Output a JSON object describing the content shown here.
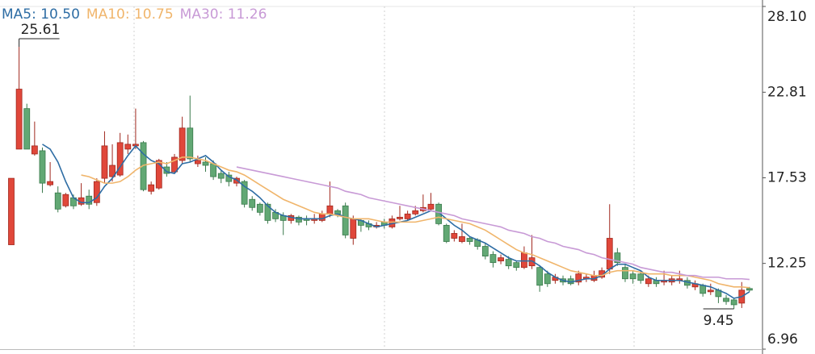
{
  "chart_data": {
    "type": "candlestick",
    "up_color": "#e0473a",
    "down_color": "#62a874",
    "open": [
      13.4,
      19.3,
      21.8,
      19.0,
      19.2,
      17.1,
      16.6,
      15.8,
      16.3,
      15.9,
      16.4,
      16.0,
      17.5,
      17.6,
      17.7,
      19.3,
      19.5,
      19.7,
      16.7,
      16.9,
      18.2,
      17.9,
      18.6,
      20.6,
      18.4,
      18.5,
      18.4,
      17.8,
      17.7,
      17.2,
      17.3,
      16.2,
      15.9,
      15.9,
      15.4,
      15.2,
      14.9,
      15.1,
      15.0,
      14.9,
      14.9,
      15.3,
      15.5,
      15.8,
      13.8,
      14.9,
      14.7,
      14.5,
      14.8,
      14.5,
      15.0,
      15.0,
      15.3,
      15.5,
      15.6,
      15.9,
      14.6,
      13.8,
      13.6,
      13.8,
      13.7,
      13.3,
      12.8,
      12.4,
      12.5,
      12.3,
      12.0,
      12.1,
      12.0,
      11.6,
      11.2,
      11.3,
      11.3,
      11.1,
      11.3,
      11.2,
      11.4,
      11.9,
      12.9,
      12.0,
      11.6,
      11.6,
      11.0,
      11.2,
      11.1,
      11.1,
      11.2,
      11.2,
      10.8,
      10.9,
      10.5,
      10.6,
      10.1,
      10.0,
      9.8,
      10.7
    ],
    "high": [
      17.5,
      25.61,
      22.1,
      21.0,
      19.4,
      18.5,
      17.0,
      16.6,
      16.5,
      17.2,
      16.8,
      17.5,
      20.4,
      19.6,
      20.3,
      20.2,
      21.8,
      19.8,
      17.3,
      18.7,
      18.5,
      19.0,
      21.3,
      22.6,
      18.9,
      18.8,
      18.6,
      18.0,
      17.9,
      17.6,
      17.4,
      16.4,
      16.0,
      16.0,
      15.6,
      15.4,
      15.3,
      15.2,
      15.2,
      15.3,
      15.5,
      17.3,
      15.6,
      16.0,
      15.2,
      15.0,
      14.9,
      14.8,
      15.0,
      15.2,
      15.8,
      15.5,
      15.8,
      16.5,
      16.6,
      16.0,
      14.7,
      14.3,
      14.7,
      13.9,
      13.8,
      13.5,
      13.0,
      12.8,
      12.7,
      12.4,
      13.3,
      14.0,
      12.1,
      11.8,
      11.6,
      11.5,
      11.5,
      11.8,
      11.6,
      11.8,
      12.0,
      15.9,
      13.2,
      12.2,
      11.8,
      11.8,
      11.5,
      11.4,
      11.8,
      11.5,
      11.8,
      11.4,
      11.2,
      11.0,
      11.0,
      10.7,
      10.3,
      10.1,
      11.1,
      10.8
    ],
    "low": [
      13.4,
      19.3,
      19.3,
      18.9,
      16.6,
      17.0,
      15.4,
      15.7,
      15.6,
      15.8,
      15.6,
      15.8,
      17.2,
      17.3,
      17.6,
      19.0,
      19.3,
      16.7,
      16.5,
      16.8,
      17.6,
      17.8,
      18.4,
      18.5,
      18.2,
      17.9,
      17.4,
      17.2,
      17.0,
      17.0,
      15.7,
      15.5,
      15.2,
      14.7,
      14.8,
      14.0,
      14.7,
      14.6,
      14.6,
      14.7,
      14.8,
      15.1,
      15.1,
      13.8,
      13.4,
      14.2,
      14.3,
      14.4,
      14.4,
      14.4,
      14.9,
      14.9,
      15.2,
      15.4,
      15.5,
      14.6,
      13.5,
      13.6,
      13.5,
      13.4,
      13.1,
      12.5,
      12.0,
      12.2,
      11.9,
      11.8,
      11.9,
      11.9,
      10.5,
      10.8,
      11.0,
      10.9,
      10.9,
      10.9,
      11.1,
      11.1,
      11.3,
      11.6,
      12.1,
      11.1,
      11.0,
      11.0,
      10.8,
      10.8,
      10.9,
      10.9,
      11.0,
      10.7,
      10.6,
      10.2,
      10.3,
      9.8,
      9.7,
      9.45,
      9.5,
      10.5
    ],
    "close": [
      17.5,
      23.0,
      19.3,
      19.5,
      17.2,
      17.3,
      15.6,
      16.5,
      15.8,
      16.3,
      15.9,
      17.3,
      19.5,
      18.3,
      19.7,
      19.6,
      19.6,
      16.8,
      17.1,
      18.6,
      17.8,
      18.8,
      20.6,
      18.7,
      18.6,
      18.3,
      17.6,
      17.5,
      17.3,
      17.5,
      15.9,
      15.7,
      15.4,
      14.9,
      15.0,
      14.9,
      15.2,
      14.8,
      14.9,
      15.0,
      15.3,
      15.8,
      15.3,
      14.0,
      15.0,
      14.6,
      14.5,
      14.6,
      14.6,
      15.0,
      15.1,
      15.3,
      15.5,
      15.7,
      15.9,
      14.7,
      13.6,
      14.1,
      13.9,
      13.6,
      13.3,
      12.7,
      12.3,
      12.6,
      12.1,
      12.0,
      12.9,
      12.6,
      10.9,
      11.0,
      11.4,
      11.1,
      11.0,
      11.6,
      11.4,
      11.5,
      11.8,
      13.8,
      12.3,
      11.3,
      11.3,
      11.2,
      11.3,
      11.0,
      11.2,
      11.3,
      11.3,
      10.9,
      11.0,
      10.4,
      10.6,
      10.2,
      9.9,
      9.7,
      10.6,
      10.6
    ],
    "lines": [
      {
        "name": "MA5: 10.50",
        "color": "#2e6da4",
        "values": [
          null,
          null,
          null,
          null,
          19.6,
          19.3,
          18.5,
          17.3,
          16.3,
          16.0,
          16.0,
          16.3,
          17.0,
          17.5,
          18.2,
          18.9,
          19.5,
          19.0,
          18.6,
          18.4,
          17.9,
          17.8,
          18.4,
          18.5,
          18.7,
          18.9,
          18.5,
          18.0,
          17.6,
          17.4,
          17.0,
          16.7,
          16.3,
          15.8,
          15.4,
          15.2,
          15.1,
          15.0,
          15.0,
          15.0,
          15.0,
          15.2,
          15.3,
          15.1,
          15.0,
          14.9,
          14.7,
          14.5,
          14.6,
          14.7,
          14.8,
          14.9,
          15.1,
          15.3,
          15.5,
          15.4,
          15.0,
          14.6,
          14.3,
          13.9,
          13.7,
          13.5,
          13.2,
          12.9,
          12.6,
          12.4,
          12.4,
          12.4,
          12.1,
          11.7,
          11.4,
          11.2,
          11.1,
          11.2,
          11.3,
          11.3,
          11.5,
          11.9,
          12.2,
          12.2,
          12.0,
          11.8,
          11.4,
          11.2,
          11.2,
          11.2,
          11.2,
          11.1,
          11.0,
          10.9,
          10.8,
          10.6,
          10.4,
          10.1,
          10.2,
          10.5
        ]
      },
      {
        "name": "MA10: 10.75",
        "color": "#f0b56b",
        "values": [
          null,
          null,
          null,
          null,
          null,
          null,
          null,
          null,
          null,
          17.7,
          17.6,
          17.4,
          17.2,
          17.2,
          17.3,
          17.6,
          18.0,
          18.3,
          18.4,
          18.5,
          18.4,
          18.6,
          18.8,
          18.8,
          18.7,
          18.6,
          18.4,
          18.2,
          18.0,
          17.9,
          17.7,
          17.4,
          17.1,
          16.8,
          16.5,
          16.2,
          16.0,
          15.8,
          15.6,
          15.4,
          15.3,
          15.3,
          15.2,
          15.1,
          15.0,
          15.0,
          15.0,
          14.9,
          14.8,
          14.8,
          14.8,
          14.8,
          14.8,
          14.9,
          15.0,
          15.1,
          15.0,
          14.9,
          14.8,
          14.7,
          14.5,
          14.3,
          14.0,
          13.7,
          13.4,
          13.1,
          12.9,
          12.8,
          12.6,
          12.4,
          12.2,
          12.0,
          11.8,
          11.7,
          11.6,
          11.5,
          11.5,
          11.7,
          11.8,
          11.8,
          11.8,
          11.7,
          11.6,
          11.6,
          11.6,
          11.5,
          11.5,
          11.5,
          11.4,
          11.3,
          11.2,
          11.0,
          10.9,
          10.8,
          10.8,
          10.75
        ]
      },
      {
        "name": "MA30: 11.26",
        "color": "#c89ad6",
        "values": [
          null,
          null,
          null,
          null,
          null,
          null,
          null,
          null,
          null,
          null,
          null,
          null,
          null,
          null,
          null,
          null,
          null,
          null,
          null,
          null,
          null,
          null,
          null,
          null,
          null,
          null,
          null,
          null,
          null,
          18.2,
          18.1,
          18.0,
          17.9,
          17.8,
          17.7,
          17.6,
          17.5,
          17.4,
          17.3,
          17.2,
          17.1,
          17.0,
          16.9,
          16.7,
          16.6,
          16.5,
          16.3,
          16.2,
          16.1,
          16.0,
          15.9,
          15.8,
          15.7,
          15.6,
          15.5,
          15.4,
          15.3,
          15.2,
          15.0,
          14.9,
          14.8,
          14.7,
          14.6,
          14.5,
          14.3,
          14.2,
          14.1,
          13.9,
          13.8,
          13.6,
          13.5,
          13.3,
          13.2,
          13.1,
          12.9,
          12.8,
          12.6,
          12.5,
          12.4,
          12.3,
          12.2,
          12.0,
          11.9,
          11.8,
          11.7,
          11.7,
          11.6,
          11.5,
          11.5,
          11.4,
          11.4,
          11.4,
          11.3,
          11.3,
          11.3,
          11.26
        ]
      }
    ],
    "annotations": [
      {
        "value": 25.61,
        "label": "25.61"
      },
      {
        "value": 9.45,
        "label": "9.45"
      }
    ],
    "ylim": [
      6.96,
      28.1
    ],
    "yticks": [
      {
        "value": 28.1,
        "label": "28.10"
      },
      22.81,
      17.53,
      12.25,
      6.96
    ]
  }
}
